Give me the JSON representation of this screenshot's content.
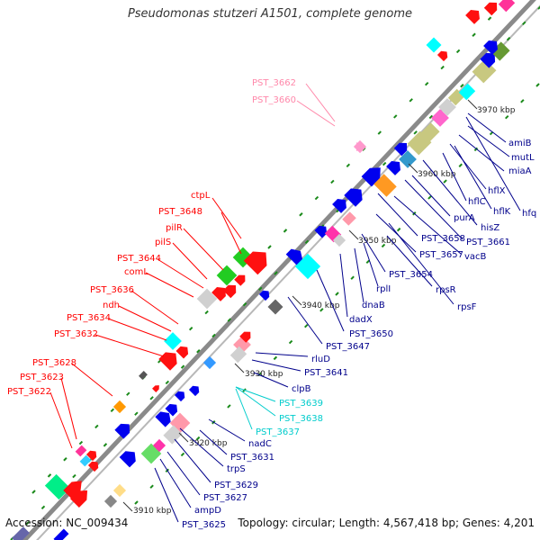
{
  "title": "Pseudomonas stutzeri A1501, complete genome",
  "accession": "Accession: NC_009434",
  "summary": "Topology: circular; Length: 4,567,418 bp; Genes: 4,201",
  "colors": {
    "red": "#ff0000",
    "darkred": "#d00000",
    "blue": "#0000ff",
    "navy": "#00008b",
    "pink": "#ff88aa",
    "cyan": "#00cccc",
    "green": "#00aa00"
  },
  "ticks": [
    {
      "label": "3910 kbp",
      "id": "t3910"
    },
    {
      "label": "3920 kbp",
      "id": "t3920"
    },
    {
      "label": "3930 kbp",
      "id": "t3930"
    },
    {
      "label": "3940 kbp",
      "id": "t3940"
    },
    {
      "label": "3950 kbp",
      "id": "t3950"
    },
    {
      "label": "3960 kbp",
      "id": "t3960"
    },
    {
      "label": "3970 kbp",
      "id": "t3970"
    }
  ],
  "labels": [
    {
      "text": "PST_3662",
      "color": "pink"
    },
    {
      "text": "PST_3660",
      "color": "pink"
    },
    {
      "text": "ctpL",
      "color": "red"
    },
    {
      "text": "PST_3648",
      "color": "red"
    },
    {
      "text": "pilR",
      "color": "red"
    },
    {
      "text": "pilS",
      "color": "red"
    },
    {
      "text": "PST_3644",
      "color": "red"
    },
    {
      "text": "comL",
      "color": "red"
    },
    {
      "text": "PST_3636",
      "color": "red"
    },
    {
      "text": "ndh",
      "color": "red"
    },
    {
      "text": "PST_3634",
      "color": "red"
    },
    {
      "text": "PST_3632",
      "color": "red"
    },
    {
      "text": "PST_3628",
      "color": "red"
    },
    {
      "text": "PST_3623",
      "color": "red"
    },
    {
      "text": "PST_3622",
      "color": "red"
    },
    {
      "text": "amiB",
      "color": "navy"
    },
    {
      "text": "mutL",
      "color": "navy"
    },
    {
      "text": "miaA",
      "color": "navy"
    },
    {
      "text": "hflX",
      "color": "navy"
    },
    {
      "text": "hflC",
      "color": "navy"
    },
    {
      "text": "hflK",
      "color": "navy"
    },
    {
      "text": "hfq",
      "color": "navy"
    },
    {
      "text": "purA",
      "color": "navy"
    },
    {
      "text": "hisZ",
      "color": "navy"
    },
    {
      "text": "PST_3658",
      "color": "navy"
    },
    {
      "text": "PST_3661",
      "color": "navy"
    },
    {
      "text": "PST_3657",
      "color": "navy"
    },
    {
      "text": "vacB",
      "color": "navy"
    },
    {
      "text": "PST_3654",
      "color": "navy"
    },
    {
      "text": "rpsR",
      "color": "navy"
    },
    {
      "text": "rplI",
      "color": "navy"
    },
    {
      "text": "rpsF",
      "color": "navy"
    },
    {
      "text": "dnaB",
      "color": "navy"
    },
    {
      "text": "dadX",
      "color": "navy"
    },
    {
      "text": "PST_3650",
      "color": "navy"
    },
    {
      "text": "PST_3647",
      "color": "navy"
    },
    {
      "text": "rluD",
      "color": "navy"
    },
    {
      "text": "PST_3641",
      "color": "navy"
    },
    {
      "text": "clpB",
      "color": "navy"
    },
    {
      "text": "PST_3639",
      "color": "cyan"
    },
    {
      "text": "PST_3638",
      "color": "cyan"
    },
    {
      "text": "PST_3637",
      "color": "cyan"
    },
    {
      "text": "nadC",
      "color": "navy"
    },
    {
      "text": "PST_3631",
      "color": "navy"
    },
    {
      "text": "trpS",
      "color": "navy"
    },
    {
      "text": "PST_3629",
      "color": "navy"
    },
    {
      "text": "PST_3627",
      "color": "navy"
    },
    {
      "text": "ampD",
      "color": "navy"
    },
    {
      "text": "PST_3625",
      "color": "navy"
    }
  ]
}
